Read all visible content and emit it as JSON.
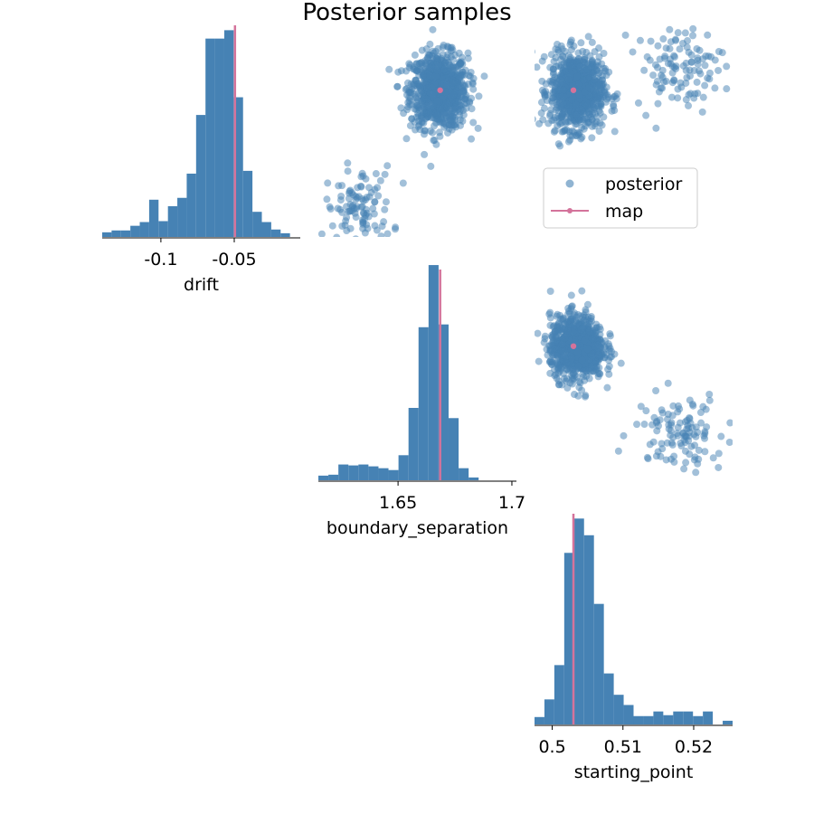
{
  "figure": {
    "title": "Posterior samples"
  },
  "colors": {
    "hist": "#4682b4",
    "scatter": "#4682b4",
    "map": "#d4739b",
    "axis": "#000000"
  },
  "legend": {
    "placement": "upper-left of drift/starting_point panel",
    "entries": [
      {
        "label": "posterior",
        "marker": "circle",
        "color": "#4682b4"
      },
      {
        "label": "map",
        "marker": "line-dot",
        "color": "#d4739b"
      }
    ]
  },
  "chart_data": [
    {
      "type": "histogram",
      "panel": "diag-0",
      "xlabel": "drift",
      "xlim": [
        -0.14,
        -0.005
      ],
      "ylim": [
        0,
        0.235
      ],
      "ticks": [
        -0.1,
        -0.05
      ],
      "tick_labels": [
        "-0.1",
        "-0.05"
      ],
      "bin_width": 0.0064,
      "bin_start": -0.14,
      "values": [
        0.005,
        0.007,
        0.007,
        0.012,
        0.016,
        0.04,
        0.017,
        0.033,
        0.042,
        0.068,
        0.131,
        0.213,
        0.213,
        0.222,
        0.15,
        0.071,
        0.027,
        0.016,
        0.008,
        0.004
      ],
      "map_x": -0.0495
    },
    {
      "type": "histogram",
      "panel": "diag-1",
      "xlabel": "boundary_separation",
      "xlim": [
        1.615,
        1.702
      ],
      "ylim": [
        0,
        0.235
      ],
      "ticks": [
        1.65,
        1.7
      ],
      "tick_labels": [
        "1.65",
        "1.7"
      ],
      "bin_width": 0.0044,
      "bin_start": 1.615,
      "values": [
        0.005,
        0.006,
        0.017,
        0.016,
        0.017,
        0.015,
        0.013,
        0.011,
        0.027,
        0.078,
        0.165,
        0.232,
        0.168,
        0.067,
        0.013,
        0.003
      ],
      "map_x": 1.6685
    },
    {
      "type": "histogram",
      "panel": "diag-2",
      "xlabel": "starting_point",
      "xlim": [
        0.4975,
        0.5255
      ],
      "ylim": [
        0,
        0.235
      ],
      "ticks": [
        0.5,
        0.51,
        0.52
      ],
      "tick_labels": [
        "0.5",
        "0.51",
        "0.52"
      ],
      "bin_width": 0.0014,
      "bin_start": 0.4975,
      "values": [
        0.008,
        0.027,
        0.064,
        0.185,
        0.222,
        0.204,
        0.13,
        0.055,
        0.032,
        0.021,
        0.009,
        0.009,
        0.014,
        0.01,
        0.014,
        0.014,
        0.009,
        0.014,
        0.0,
        0.004
      ],
      "map_x": 0.503
    },
    {
      "type": "scatter",
      "panel": "drift-vs-boundary_separation",
      "x_param": "drift",
      "y_param": "boundary_separation",
      "main_cluster": {
        "x": -0.05,
        "y": 1.668,
        "sd_x": 0.011,
        "sd_y": 0.006,
        "n": 900
      },
      "minor_cluster": {
        "x": -0.122,
        "y": 1.633,
        "sd_x": 0.012,
        "sd_y": 0.007,
        "n": 110
      },
      "map": {
        "x": -0.0495,
        "y": 1.6685
      }
    },
    {
      "type": "scatter",
      "panel": "drift-vs-starting_point",
      "x_param": "drift",
      "y_param": "starting_point",
      "main_cluster": {
        "x": -0.05,
        "y": 0.5035,
        "sd_x": 0.011,
        "sd_y": 0.0018,
        "n": 900
      },
      "minor_cluster": {
        "x": -0.035,
        "y": 0.518,
        "sd_x": 0.012,
        "sd_y": 0.003,
        "n": 110
      },
      "map": {
        "x": -0.0495,
        "y": 0.503
      }
    },
    {
      "type": "scatter",
      "panel": "boundary_separation-vs-starting_point",
      "x_param": "boundary_separation",
      "y_param": "starting_point",
      "main_cluster": {
        "x": 1.668,
        "y": 0.5035,
        "sd_x": 0.006,
        "sd_y": 0.0018,
        "n": 900
      },
      "minor_cluster": {
        "x": 1.635,
        "y": 0.518,
        "sd_x": 0.007,
        "sd_y": 0.003,
        "n": 110
      },
      "map": {
        "x": 1.6685,
        "y": 0.503
      }
    }
  ]
}
